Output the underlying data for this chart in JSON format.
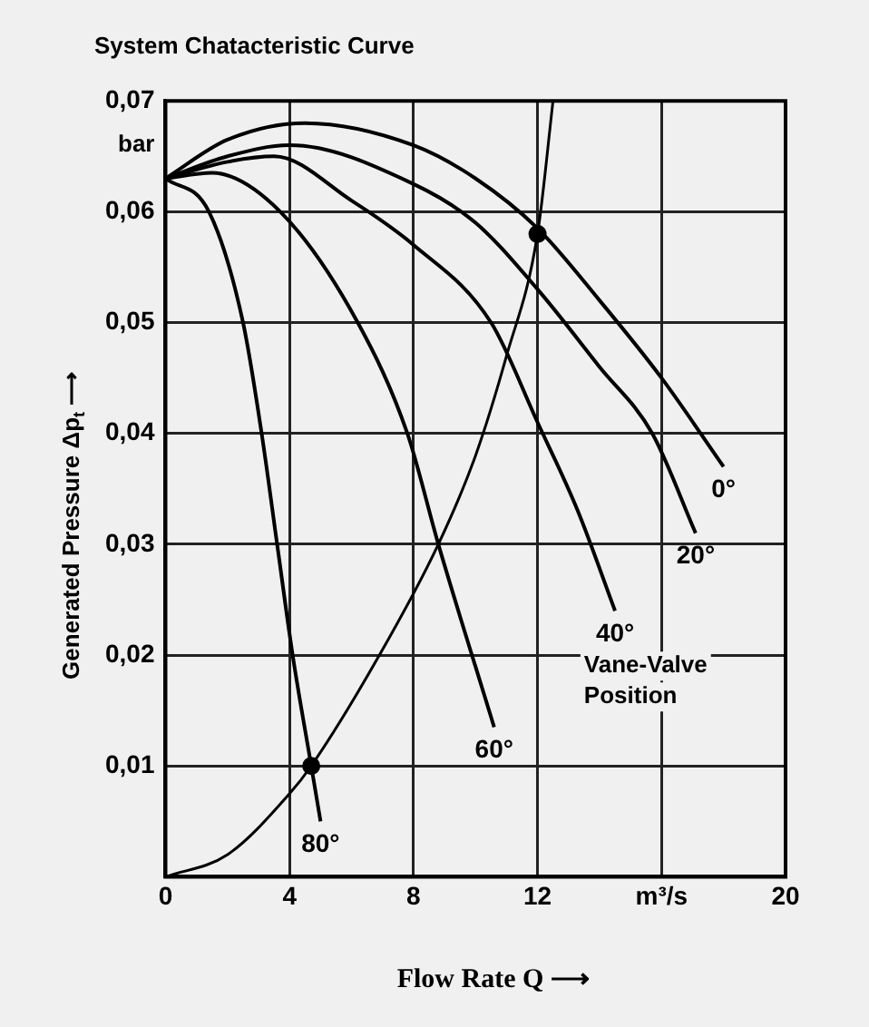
{
  "chart_data": {
    "type": "line",
    "title": "System Chatacteristic Curve",
    "xlabel": "Flow Rate Q ⟶",
    "ylabel": "Generated Pressure Δp$_{t}$ ⟶",
    "annotations": [
      "bar",
      "Vane-Valve Position"
    ],
    "xlim": [
      0,
      20
    ],
    "ylim": [
      0,
      0.07
    ],
    "xticks": [
      0,
      4,
      8,
      12,
      {
        "value": 16,
        "label": "m³/s"
      },
      20
    ],
    "yticks": [
      {
        "value": 0.01,
        "label": "0,01"
      },
      {
        "value": 0.02,
        "label": "0,02"
      },
      {
        "value": 0.03,
        "label": "0,03"
      },
      {
        "value": 0.04,
        "label": "0,04"
      },
      {
        "value": 0.05,
        "label": "0,05"
      },
      {
        "value": 0.06,
        "label": "0,06"
      },
      {
        "value": 0.07,
        "label": "0,07"
      }
    ],
    "grid": true,
    "legend": false,
    "marker": "none",
    "line_style": "solid",
    "series": [
      {
        "name": "0°",
        "color": "#000000",
        "x": [
          0,
          2,
          4.5,
          8,
          10,
          12,
          14,
          16,
          18
        ],
        "values": [
          0.063,
          0.0665,
          0.068,
          0.066,
          0.063,
          0.0585,
          0.052,
          0.045,
          0.037
        ]
      },
      {
        "name": "20°",
        "color": "#000000",
        "x": [
          0,
          2,
          4,
          8,
          10,
          12,
          14,
          15.7,
          17.1
        ],
        "values": [
          0.063,
          0.065,
          0.066,
          0.0625,
          0.059,
          0.053,
          0.046,
          0.04,
          0.031
        ]
      },
      {
        "name": "40°",
        "color": "#000000",
        "x": [
          0,
          2,
          3.5,
          6,
          8,
          10.5,
          12,
          13.3,
          14.5
        ],
        "values": [
          0.063,
          0.0645,
          0.065,
          0.061,
          0.057,
          0.05,
          0.041,
          0.033,
          0.024
        ]
      },
      {
        "name": "60°",
        "color": "#000000",
        "x": [
          0,
          1.5,
          3.7,
          6.2,
          7.8,
          8.8,
          10.6
        ],
        "values": [
          0.063,
          0.0635,
          0.06,
          0.05,
          0.04,
          0.03,
          0.0135
        ]
      },
      {
        "name": "80°",
        "color": "#000000",
        "x": [
          0,
          1.4,
          2.5,
          3.1,
          3.6,
          4.1,
          4.7,
          5
        ],
        "values": [
          0.063,
          0.06,
          0.05,
          0.04,
          0.03,
          0.02,
          0.01,
          0.005
        ]
      },
      {
        "type": "line",
        "color": "#000000",
        "x": [
          0,
          2,
          4,
          4.7,
          6.9,
          8.8,
          10,
          11,
          12,
          12.5
        ],
        "values": [
          0,
          0.002,
          0.0075,
          0.01,
          0.02,
          0.03,
          0.038,
          0.047,
          0.058,
          0.07
        ]
      },
      {
        "type": "scatter",
        "color": "#000000",
        "marker": "circle",
        "x": [
          4.7,
          12
        ],
        "values": [
          0.01,
          0.058
        ]
      }
    ]
  }
}
